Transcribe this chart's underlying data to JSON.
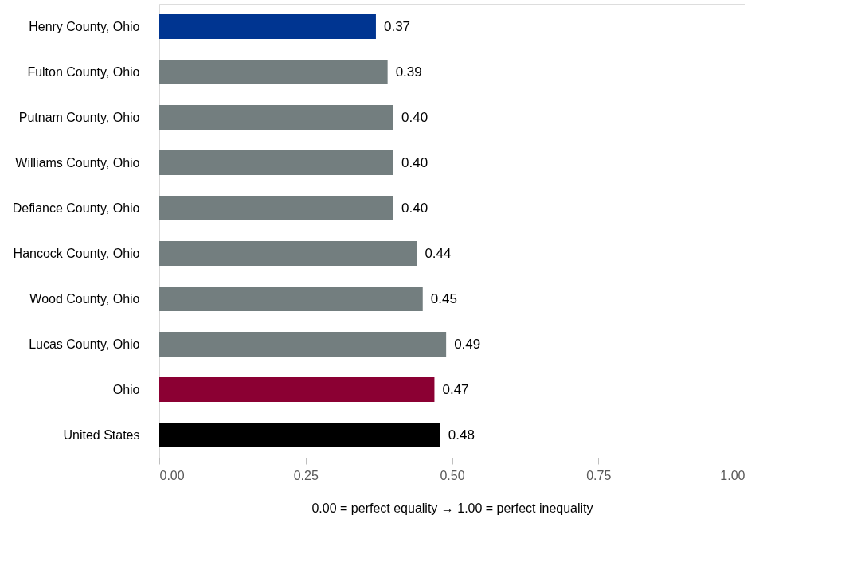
{
  "chart_data": {
    "type": "bar",
    "orientation": "horizontal",
    "xlabel": "0.00 = perfect equality → 1.00 = perfect inequality",
    "categories": [
      "Henry County, Ohio",
      "Fulton County, Ohio",
      "Putnam County, Ohio",
      "Williams County, Ohio",
      "Defiance County, Ohio",
      "Hancock County, Ohio",
      "Wood County, Ohio",
      "Lucas County, Ohio",
      "Ohio",
      "United States"
    ],
    "values": [
      0.37,
      0.39,
      0.4,
      0.4,
      0.4,
      0.44,
      0.45,
      0.49,
      0.47,
      0.48
    ],
    "colors": [
      "#003591",
      "#737e7f",
      "#737e7f",
      "#737e7f",
      "#737e7f",
      "#737e7f",
      "#737e7f",
      "#737e7f",
      "#8b0033",
      "#000000"
    ],
    "xlim": [
      0,
      1
    ],
    "xticks": [
      {
        "value": 0,
        "label": "0.00"
      },
      {
        "value": 0.25,
        "label": "0.25"
      },
      {
        "value": 0.5,
        "label": "0.50"
      },
      {
        "value": 0.75,
        "label": "0.75"
      },
      {
        "value": 1,
        "label": "1.00"
      }
    ],
    "value_labels": [
      "0.37",
      "0.39",
      "0.40",
      "0.40",
      "0.40",
      "0.44",
      "0.45",
      "0.49",
      "0.47",
      "0.48"
    ],
    "grid": false
  }
}
